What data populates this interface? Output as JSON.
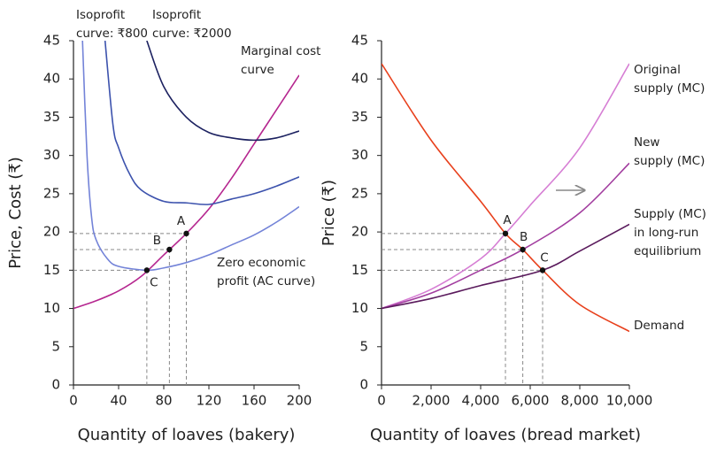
{
  "chart_data": [
    {
      "type": "line",
      "y_label": "Price, Cost (₹)",
      "x_label": "Quantity of loaves (bakery)",
      "xlim": [
        0,
        200
      ],
      "xticks": [
        0,
        40,
        80,
        120,
        160,
        200
      ],
      "ylim": [
        0,
        45
      ],
      "yticks": [
        0,
        5,
        10,
        15,
        20,
        25,
        30,
        35,
        40,
        45
      ],
      "series": [
        {
          "name": [
            "Marginal cost",
            "curve"
          ],
          "color": "#b5268f",
          "x": [
            0,
            20,
            40,
            60,
            80,
            100,
            120,
            140,
            160,
            180,
            200
          ],
          "values": [
            10,
            11,
            12.3,
            14.2,
            17,
            19.8,
            23,
            27,
            31.5,
            36,
            40.5
          ]
        },
        {
          "name": [
            "Zero economic",
            "profit (AC curve)"
          ],
          "color": "#7383d8",
          "x": [
            8,
            12,
            16,
            20,
            30,
            40,
            65,
            80,
            100,
            120,
            140,
            160,
            180,
            200
          ],
          "values": [
            45,
            30,
            22,
            19,
            16.5,
            15.5,
            15,
            15.3,
            16,
            17,
            18.3,
            19.6,
            21.3,
            23.3
          ]
        },
        {
          "name": [
            "Isoprofit",
            "curve: ₹800"
          ],
          "color": "#3c52ad",
          "x": [
            28,
            35,
            40,
            50,
            60,
            80,
            100,
            120,
            140,
            160,
            180,
            200
          ],
          "values": [
            45,
            34,
            31,
            27.5,
            25.5,
            24,
            23.8,
            23.6,
            24.3,
            25,
            26,
            27.2
          ]
        },
        {
          "name": [
            "Isoprofit",
            "curve: ₹2000"
          ],
          "color": "#1c2160",
          "x": [
            65,
            80,
            100,
            120,
            140,
            160,
            180,
            200
          ],
          "values": [
            45,
            39,
            35,
            33,
            32.3,
            32,
            32.3,
            33.2
          ]
        }
      ],
      "points": [
        {
          "label": "A",
          "x": 100,
          "y": 19.8
        },
        {
          "label": "B",
          "x": 85,
          "y": 17.7
        },
        {
          "label": "C",
          "x": 65,
          "y": 15
        }
      ]
    },
    {
      "type": "line",
      "y_label": "Price (₹)",
      "x_label": "Quantity of loaves (bread market)",
      "xlim": [
        0,
        10000
      ],
      "xticks": [
        0,
        {
          "value": 2000,
          "label": "2,000"
        },
        {
          "value": 4000,
          "label": "4,000"
        },
        {
          "value": 6000,
          "label": "6,000"
        },
        {
          "value": 8000,
          "label": "8,000"
        },
        {
          "value": 10000,
          "label": "10,000"
        }
      ],
      "ylim": [
        0,
        45
      ],
      "yticks": [
        0,
        5,
        10,
        15,
        20,
        25,
        30,
        35,
        40,
        45
      ],
      "series": [
        {
          "name": [
            "Original",
            "supply (MC)"
          ],
          "color": "#d67ed4",
          "x": [
            0,
            2000,
            4000,
            5000,
            6000,
            8000,
            10000
          ],
          "values": [
            10,
            12.5,
            16.5,
            19.8,
            23.5,
            31,
            42
          ]
        },
        {
          "name": [
            "New",
            "supply (MC)"
          ],
          "color": "#a23d9f",
          "x": [
            0,
            2000,
            4000,
            5700,
            8000,
            10000
          ],
          "values": [
            10,
            12,
            15,
            17.7,
            22.5,
            29
          ]
        },
        {
          "name": [
            "Supply (MC)",
            "in long-run",
            "equilibrium"
          ],
          "color": "#5a1a5c",
          "x": [
            0,
            2000,
            4000,
            6500,
            8000,
            10000
          ],
          "values": [
            10,
            11.3,
            13,
            15,
            17.5,
            21
          ]
        },
        {
          "name": [
            "Demand"
          ],
          "color": "#e8401c",
          "x": [
            0,
            2000,
            4000,
            5000,
            5700,
            6500,
            8000,
            10000
          ],
          "values": [
            42,
            32,
            24,
            19.8,
            17.7,
            15,
            10.5,
            7
          ]
        }
      ],
      "points": [
        {
          "label": "A",
          "x": 5000,
          "y": 19.8
        },
        {
          "label": "B",
          "x": 5700,
          "y": 17.7
        },
        {
          "label": "C",
          "x": 6500,
          "y": 15
        }
      ]
    }
  ]
}
